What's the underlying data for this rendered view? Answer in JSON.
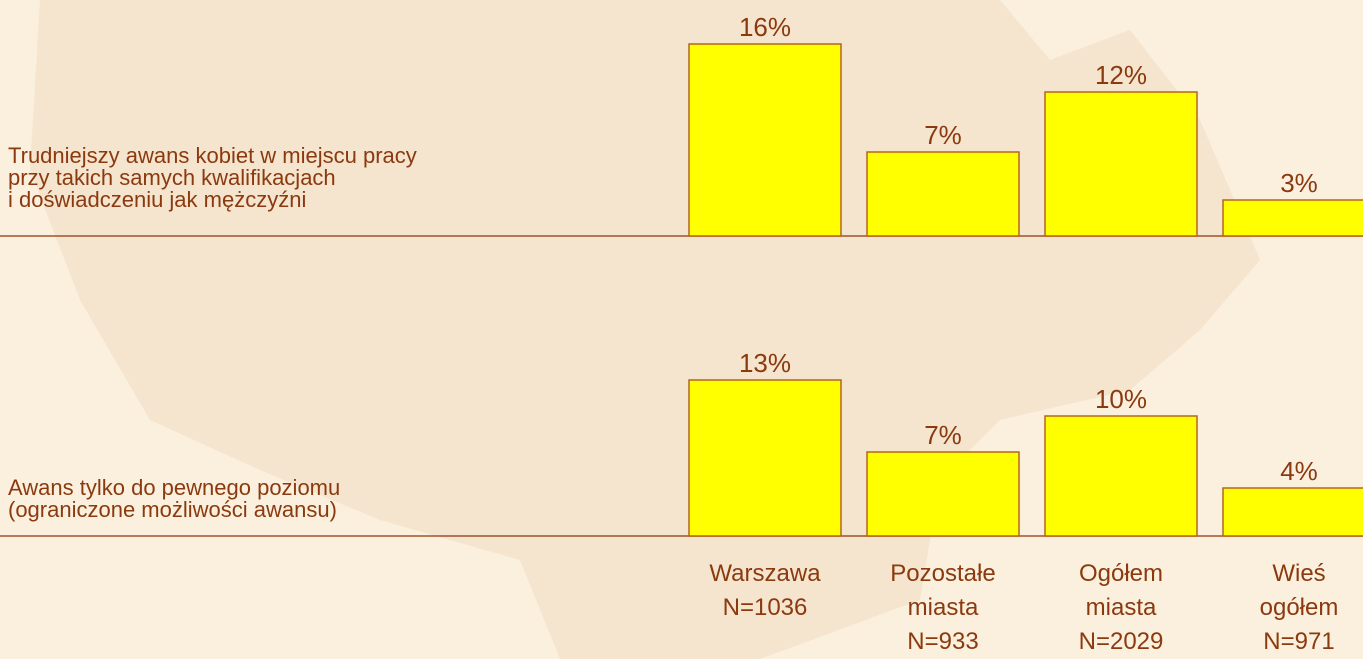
{
  "chart_data": {
    "type": "bar",
    "categories": [
      "Warszawa\nN=1036",
      "Pozostałe\nmiasta\nN=933",
      "Ogółem\nmiasta\nN=2029",
      "Wieś\nogółem\nN=971"
    ],
    "color": "#ffff00",
    "series": [
      {
        "name": "Trudniejszy awans kobiet w miejscu pracy\nprzy takich samych kwalifikacjach\ni doświadczeniu jak mężczyźni",
        "values": [
          16,
          7,
          12,
          3
        ],
        "value_labels": [
          "16%",
          "7%",
          "12%",
          "3%"
        ]
      },
      {
        "name": "Awans tylko do pewnego poziomu\n(ograniczone możliwości awansu)",
        "values": [
          13,
          7,
          10,
          4
        ],
        "value_labels": [
          "13%",
          "7%",
          "10%",
          "4%"
        ]
      }
    ]
  }
}
